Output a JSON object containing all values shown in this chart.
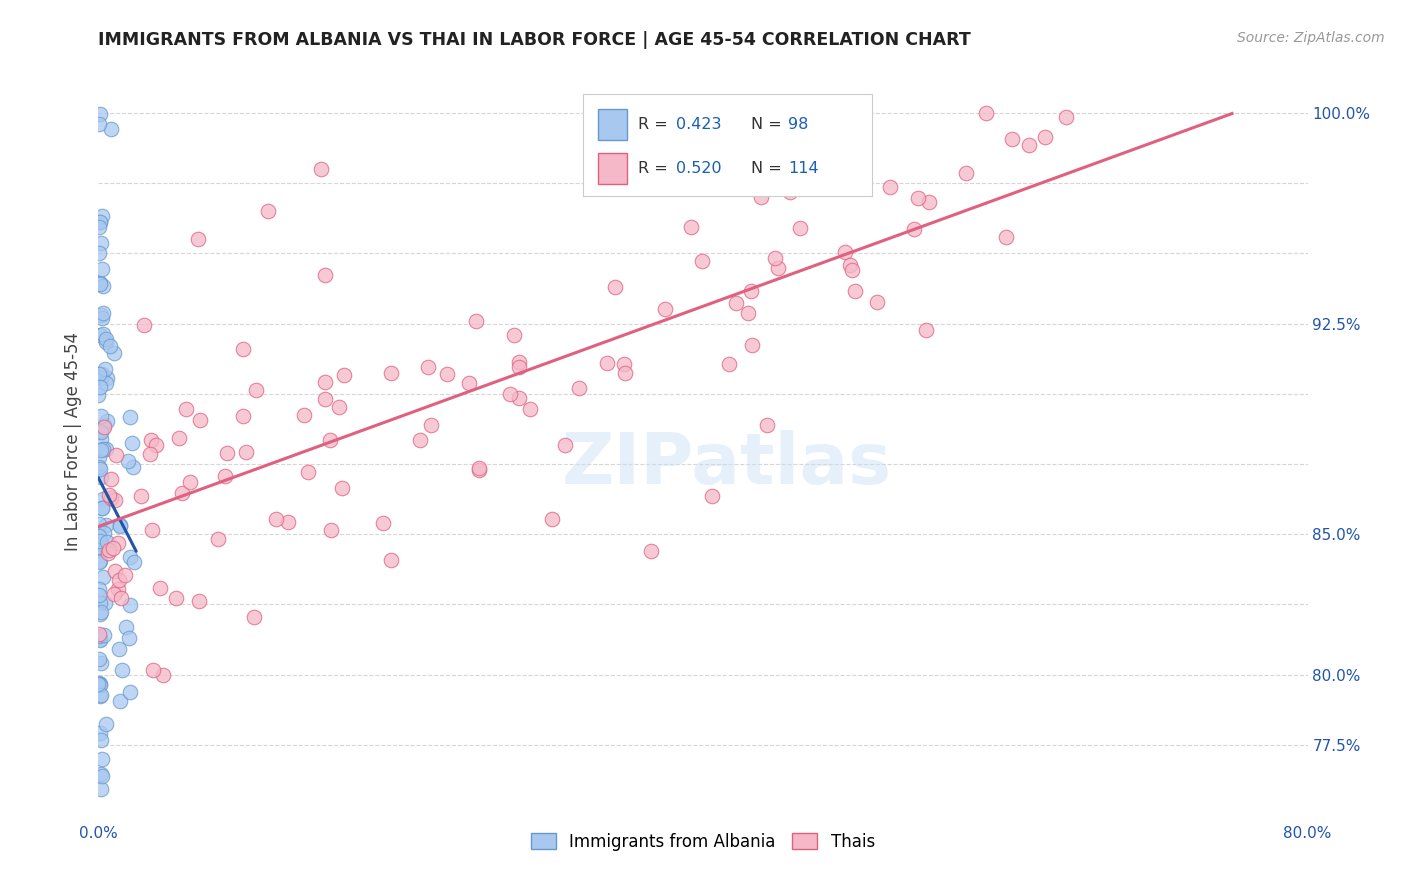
{
  "title": "IMMIGRANTS FROM ALBANIA VS THAI IN LABOR FORCE | AGE 45-54 CORRELATION CHART",
  "source": "Source: ZipAtlas.com",
  "ylabel": "In Labor Force | Age 45-54",
  "xlim": [
    0.0,
    0.8
  ],
  "ylim": [
    0.748,
    1.018
  ],
  "xtick_positions": [
    0.0,
    0.1,
    0.2,
    0.3,
    0.4,
    0.5,
    0.6,
    0.7,
    0.8
  ],
  "xtick_labels": [
    "0.0%",
    "",
    "",
    "",
    "",
    "",
    "",
    "",
    "80.0%"
  ],
  "ytick_positions": [
    0.775,
    0.8,
    0.825,
    0.85,
    0.875,
    0.9,
    0.925,
    0.95,
    0.975,
    1.0
  ],
  "ytick_labels_right": [
    "77.5%",
    "80.0%",
    "",
    "85.0%",
    "",
    "",
    "92.5%",
    "",
    "",
    "100.0%"
  ],
  "albania_color": "#a8c8f0",
  "albania_edge": "#6699cc",
  "thai_color": "#f5b8c8",
  "thai_edge": "#e06080",
  "albania_R": 0.423,
  "albania_N": 98,
  "thai_R": 0.52,
  "thai_N": 114,
  "legend_R_color": "#1a5fb4",
  "regression_albania_color": "#2255aa",
  "regression_albania_dashed_color": "#88aadd",
  "regression_thai_color": "#e06080",
  "watermark": "ZIPatlas",
  "background_color": "#ffffff",
  "grid_color": "#cccccc"
}
